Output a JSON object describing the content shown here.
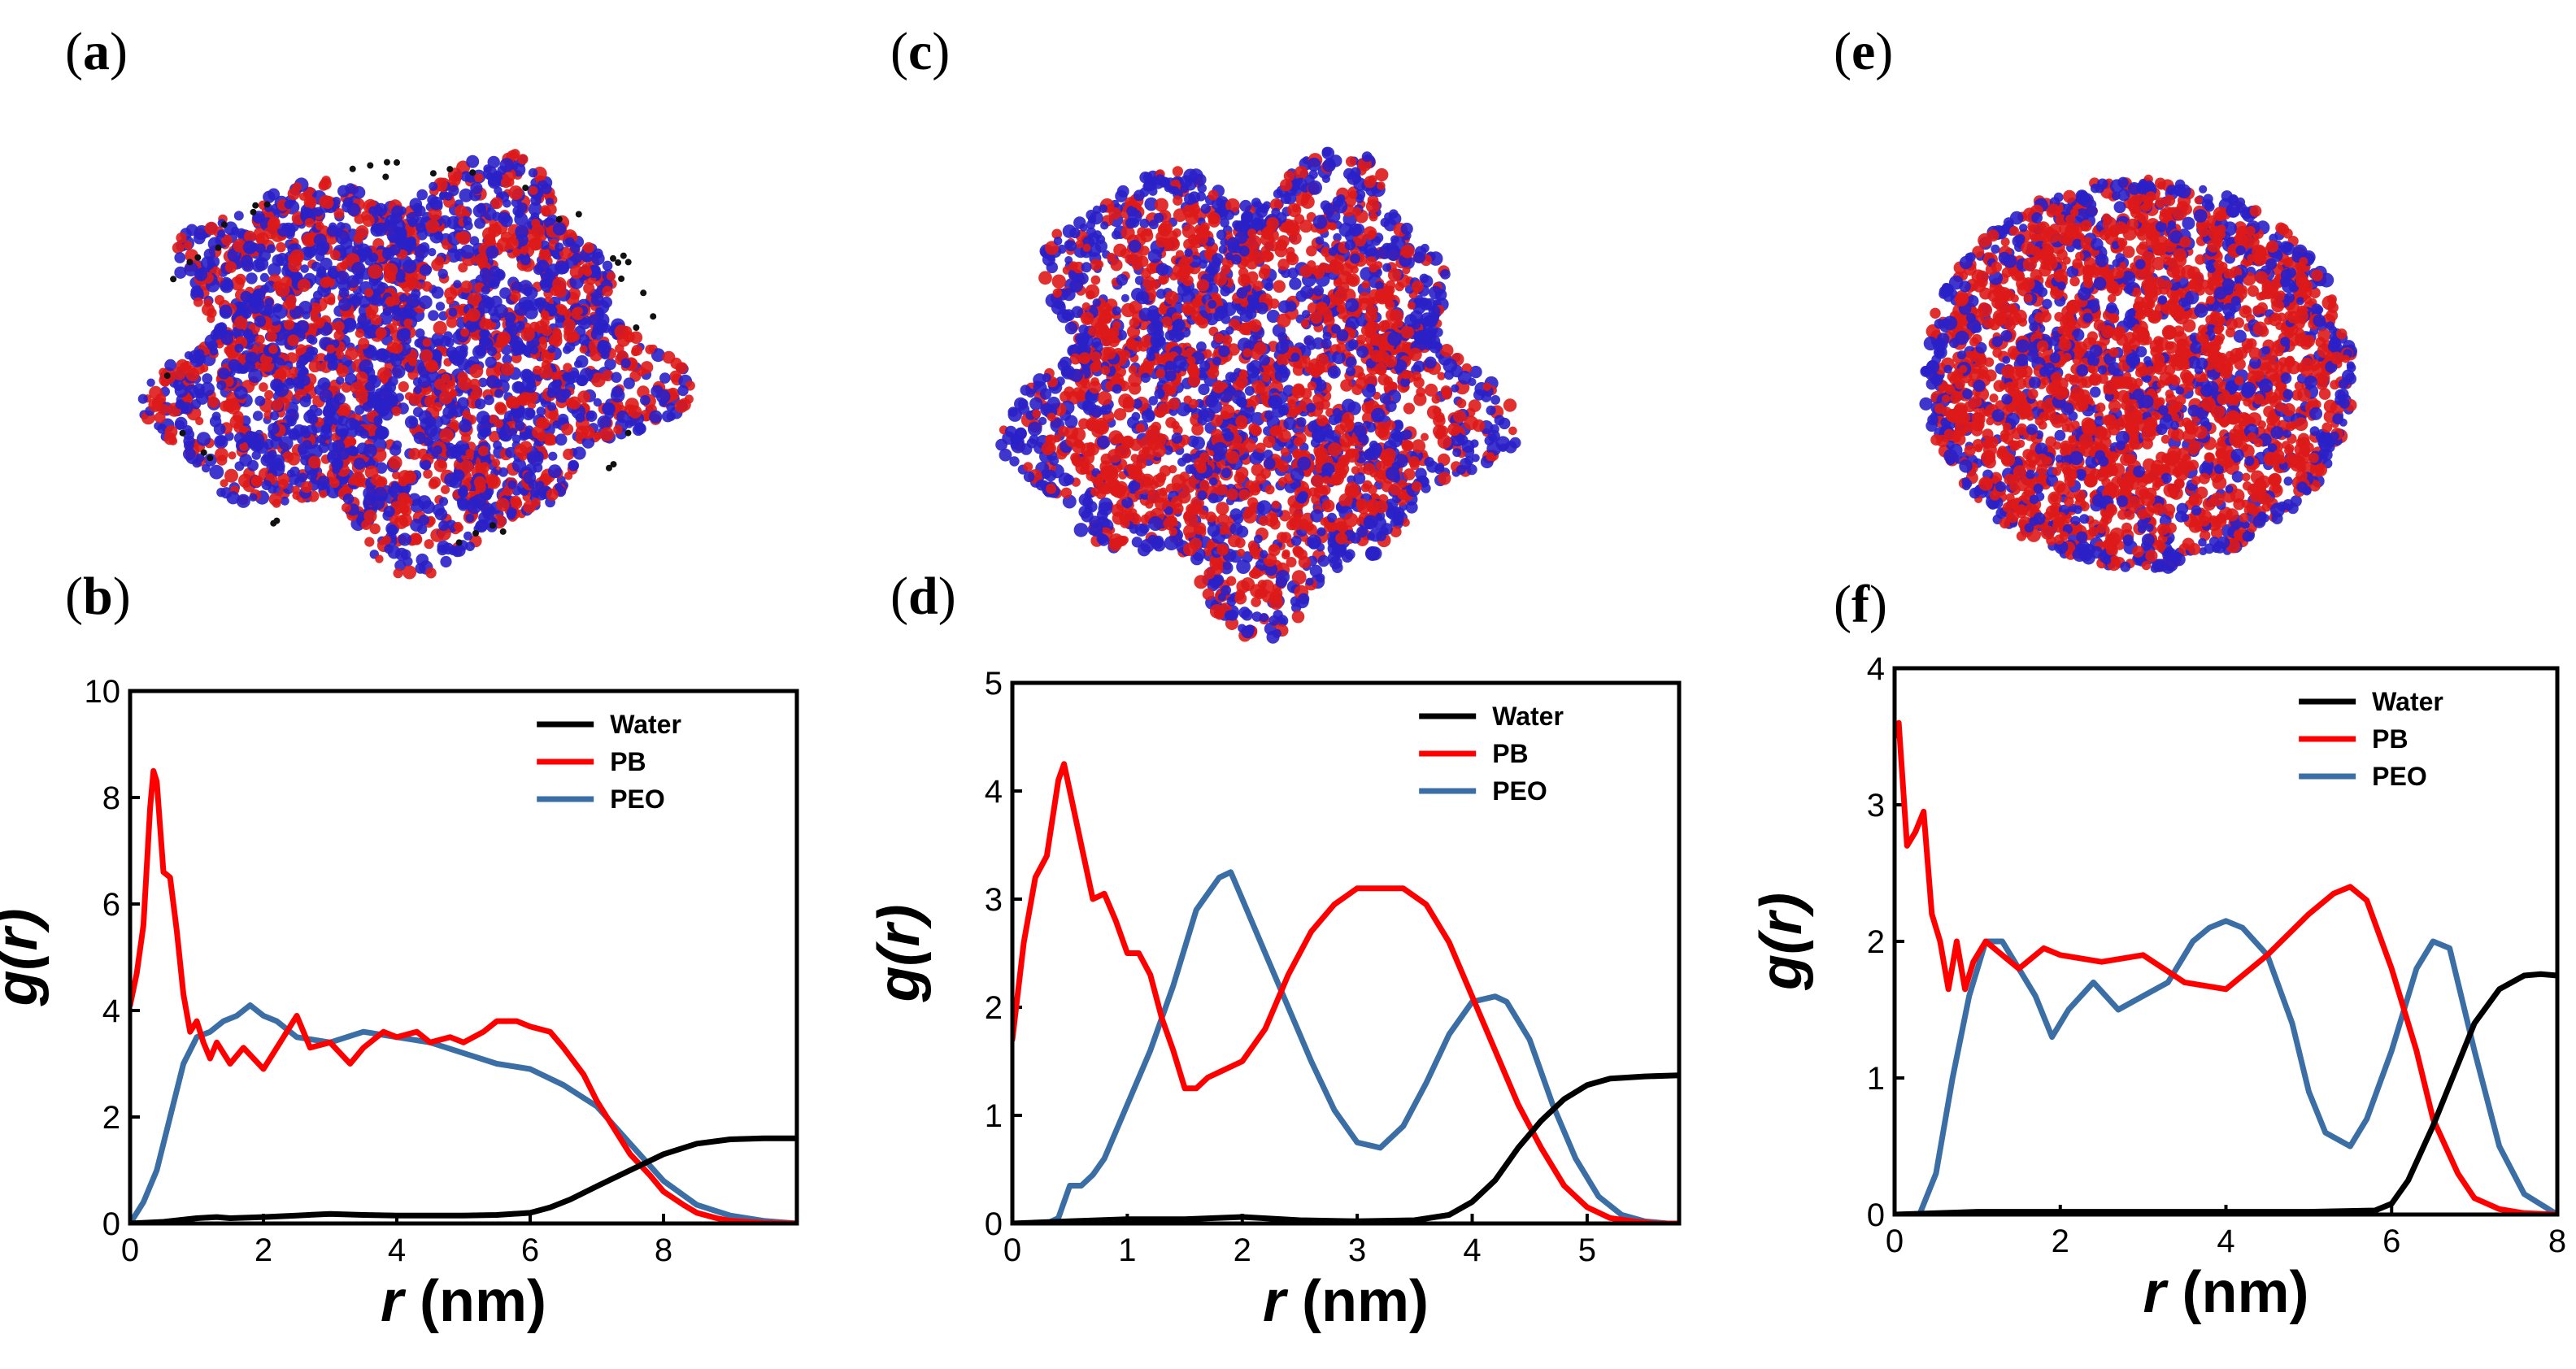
{
  "panels": [
    {
      "id": "a",
      "label_open": "(",
      "label_letter": "a",
      "label_close": ")",
      "kind": "simulation-snapshot",
      "shape": "irregular"
    },
    {
      "id": "c",
      "label_open": "(",
      "label_letter": "c",
      "label_close": ")",
      "kind": "simulation-snapshot",
      "shape": "rough"
    },
    {
      "id": "e",
      "label_open": "(",
      "label_letter": "e",
      "label_close": ")",
      "kind": "simulation-snapshot",
      "shape": "sphere"
    }
  ],
  "snapshot_colors": {
    "pb": "#dd1a1a",
    "peo": "#2a20c8",
    "water": "#111111"
  },
  "chart_data": [
    {
      "panel": "b",
      "label_open": "(",
      "label_letter": "b",
      "label_close": ")",
      "type": "line",
      "xlabel_var": "r",
      "xlabel_unit": " (nm)",
      "ylabel": "g(r)",
      "ylabel_fn": "g(",
      "ylabel_var": "r",
      "ylabel_close": ")",
      "xlim": [
        0,
        10
      ],
      "ylim": [
        0,
        10
      ],
      "xticks": [
        0,
        2,
        4,
        6,
        8
      ],
      "yticks": [
        0,
        2,
        4,
        6,
        8,
        10
      ],
      "legend": [
        "Water",
        "PB",
        "PEO"
      ],
      "series": [
        {
          "name": "Water",
          "color": "#000000",
          "x": [
            0,
            0.5,
            1.0,
            1.3,
            1.5,
            2.0,
            2.5,
            3.0,
            3.5,
            4.0,
            4.5,
            5.0,
            5.5,
            6.0,
            6.3,
            6.6,
            7.0,
            7.5,
            8.0,
            8.5,
            9.0,
            9.5,
            10.0
          ],
          "y": [
            0,
            0.03,
            0.1,
            0.12,
            0.1,
            0.12,
            0.15,
            0.18,
            0.16,
            0.15,
            0.15,
            0.15,
            0.16,
            0.2,
            0.3,
            0.45,
            0.7,
            1.0,
            1.3,
            1.5,
            1.58,
            1.6,
            1.6
          ]
        },
        {
          "name": "PB",
          "color": "#ff0000",
          "x": [
            0,
            0.1,
            0.2,
            0.3,
            0.35,
            0.4,
            0.5,
            0.6,
            0.7,
            0.8,
            0.9,
            1.0,
            1.1,
            1.2,
            1.3,
            1.5,
            1.7,
            2.0,
            2.3,
            2.5,
            2.7,
            3.0,
            3.3,
            3.5,
            3.8,
            4.0,
            4.3,
            4.5,
            4.8,
            5.0,
            5.3,
            5.5,
            5.8,
            6.0,
            6.3,
            6.5,
            6.8,
            7.0,
            7.3,
            7.5,
            7.8,
            8.0,
            8.3,
            8.5,
            8.8,
            9.0,
            9.5,
            10.0
          ],
          "y": [
            4.1,
            4.7,
            5.6,
            7.8,
            8.5,
            8.3,
            6.6,
            6.5,
            5.5,
            4.3,
            3.6,
            3.8,
            3.4,
            3.1,
            3.4,
            3.0,
            3.3,
            2.9,
            3.5,
            3.9,
            3.3,
            3.4,
            3.0,
            3.3,
            3.6,
            3.5,
            3.6,
            3.4,
            3.5,
            3.4,
            3.6,
            3.8,
            3.8,
            3.7,
            3.6,
            3.3,
            2.8,
            2.3,
            1.7,
            1.3,
            0.9,
            0.6,
            0.35,
            0.2,
            0.1,
            0.05,
            0.01,
            0
          ]
        },
        {
          "name": "PEO",
          "color": "#3a6ea5",
          "x": [
            0,
            0.2,
            0.4,
            0.6,
            0.8,
            1.0,
            1.2,
            1.4,
            1.6,
            1.8,
            2.0,
            2.2,
            2.5,
            3.0,
            3.5,
            4.0,
            4.5,
            5.0,
            5.5,
            6.0,
            6.5,
            7.0,
            7.5,
            8.0,
            8.5,
            9.0,
            9.5,
            10.0
          ],
          "y": [
            0,
            0.4,
            1.0,
            2.0,
            3.0,
            3.5,
            3.6,
            3.8,
            3.9,
            4.1,
            3.9,
            3.8,
            3.5,
            3.4,
            3.6,
            3.5,
            3.4,
            3.2,
            3.0,
            2.9,
            2.6,
            2.2,
            1.5,
            0.8,
            0.35,
            0.15,
            0.05,
            0
          ]
        }
      ]
    },
    {
      "panel": "d",
      "label_open": "(",
      "label_letter": "d",
      "label_close": ")",
      "type": "line",
      "xlabel_var": "r",
      "xlabel_unit": " (nm)",
      "ylabel": "g(r)",
      "ylabel_fn": "g(",
      "ylabel_var": "r",
      "ylabel_close": ")",
      "xlim": [
        0,
        5.8
      ],
      "ylim": [
        0,
        5
      ],
      "xticks": [
        0,
        1,
        2,
        3,
        4,
        5
      ],
      "yticks": [
        0,
        1,
        2,
        3,
        4,
        5
      ],
      "legend": [
        "Water",
        "PB",
        "PEO"
      ],
      "series": [
        {
          "name": "Water",
          "color": "#000000",
          "x": [
            0,
            0.5,
            1.0,
            1.5,
            2.0,
            2.5,
            3.0,
            3.5,
            3.8,
            4.0,
            4.2,
            4.4,
            4.6,
            4.8,
            5.0,
            5.2,
            5.5,
            5.8
          ],
          "y": [
            0,
            0.02,
            0.04,
            0.04,
            0.06,
            0.03,
            0.02,
            0.03,
            0.08,
            0.2,
            0.4,
            0.7,
            0.95,
            1.15,
            1.28,
            1.34,
            1.36,
            1.37
          ]
        },
        {
          "name": "PB",
          "color": "#ff0000",
          "x": [
            0,
            0.1,
            0.2,
            0.3,
            0.4,
            0.45,
            0.5,
            0.6,
            0.7,
            0.8,
            0.9,
            1.0,
            1.1,
            1.2,
            1.3,
            1.4,
            1.5,
            1.6,
            1.7,
            1.8,
            2.0,
            2.2,
            2.4,
            2.6,
            2.8,
            3.0,
            3.2,
            3.4,
            3.6,
            3.8,
            4.0,
            4.2,
            4.4,
            4.6,
            4.8,
            5.0,
            5.2,
            5.4,
            5.6,
            5.8
          ],
          "y": [
            1.7,
            2.6,
            3.2,
            3.4,
            4.1,
            4.25,
            4.0,
            3.5,
            3.0,
            3.05,
            2.8,
            2.5,
            2.5,
            2.3,
            1.9,
            1.6,
            1.25,
            1.25,
            1.35,
            1.4,
            1.5,
            1.8,
            2.3,
            2.7,
            2.95,
            3.1,
            3.1,
            3.1,
            2.95,
            2.6,
            2.1,
            1.6,
            1.1,
            0.7,
            0.35,
            0.15,
            0.05,
            0.02,
            0,
            0
          ]
        },
        {
          "name": "PEO",
          "color": "#3a6ea5",
          "x": [
            0,
            0.3,
            0.4,
            0.5,
            0.6,
            0.7,
            0.8,
            1.0,
            1.2,
            1.4,
            1.6,
            1.8,
            1.9,
            2.0,
            2.2,
            2.4,
            2.6,
            2.8,
            3.0,
            3.2,
            3.4,
            3.6,
            3.8,
            4.0,
            4.2,
            4.3,
            4.5,
            4.7,
            4.9,
            5.1,
            5.3,
            5.5,
            5.7,
            5.8
          ],
          "y": [
            0,
            0,
            0.05,
            0.35,
            0.35,
            0.45,
            0.6,
            1.1,
            1.6,
            2.2,
            2.9,
            3.2,
            3.25,
            3.0,
            2.5,
            2.0,
            1.5,
            1.05,
            0.75,
            0.7,
            0.9,
            1.3,
            1.75,
            2.05,
            2.1,
            2.05,
            1.7,
            1.1,
            0.6,
            0.25,
            0.08,
            0.02,
            0,
            0
          ]
        }
      ]
    },
    {
      "panel": "f",
      "label_open": "(",
      "label_letter": "f",
      "label_close": ")",
      "type": "line",
      "xlabel_var": "r",
      "xlabel_unit": " (nm)",
      "ylabel": "g(r)",
      "ylabel_fn": "g(",
      "ylabel_var": "r",
      "ylabel_close": ")",
      "xlim": [
        0,
        8
      ],
      "ylim": [
        0,
        4
      ],
      "xticks": [
        0,
        2,
        4,
        6,
        8
      ],
      "yticks": [
        0,
        1,
        2,
        3,
        4
      ],
      "legend": [
        "Water",
        "PB",
        "PEO"
      ],
      "series": [
        {
          "name": "Water",
          "color": "#000000",
          "x": [
            0,
            1.0,
            2.0,
            3.0,
            4.0,
            5.0,
            5.8,
            6.0,
            6.2,
            6.5,
            6.8,
            7.0,
            7.3,
            7.6,
            7.8,
            8.0
          ],
          "y": [
            0,
            0.02,
            0.02,
            0.02,
            0.02,
            0.02,
            0.03,
            0.08,
            0.25,
            0.65,
            1.1,
            1.4,
            1.65,
            1.75,
            1.76,
            1.75
          ]
        },
        {
          "name": "PB",
          "color": "#ff0000",
          "x": [
            0,
            0.05,
            0.15,
            0.25,
            0.35,
            0.45,
            0.55,
            0.65,
            0.75,
            0.85,
            0.95,
            1.1,
            1.3,
            1.5,
            1.8,
            2.0,
            2.5,
            3.0,
            3.5,
            4.0,
            4.5,
            5.0,
            5.3,
            5.5,
            5.7,
            6.0,
            6.3,
            6.5,
            6.8,
            7.0,
            7.3,
            7.6,
            8.0
          ],
          "y": [
            3.5,
            3.6,
            2.7,
            2.8,
            2.95,
            2.2,
            2.0,
            1.65,
            2.0,
            1.65,
            1.85,
            2.0,
            1.9,
            1.8,
            1.95,
            1.9,
            1.85,
            1.9,
            1.7,
            1.65,
            1.9,
            2.2,
            2.35,
            2.4,
            2.3,
            1.8,
            1.2,
            0.7,
            0.3,
            0.12,
            0.04,
            0.01,
            0
          ]
        },
        {
          "name": "PEO",
          "color": "#3a6ea5",
          "x": [
            0,
            0.3,
            0.5,
            0.7,
            0.9,
            1.1,
            1.3,
            1.5,
            1.7,
            1.9,
            2.1,
            2.4,
            2.7,
            3.0,
            3.3,
            3.6,
            3.8,
            4.0,
            4.2,
            4.5,
            4.8,
            5.0,
            5.2,
            5.5,
            5.7,
            6.0,
            6.3,
            6.5,
            6.7,
            7.0,
            7.3,
            7.6,
            8.0
          ],
          "y": [
            0,
            0,
            0.3,
            1.0,
            1.6,
            2.0,
            2.0,
            1.8,
            1.6,
            1.3,
            1.5,
            1.7,
            1.5,
            1.6,
            1.7,
            2.0,
            2.1,
            2.15,
            2.1,
            1.9,
            1.4,
            0.9,
            0.6,
            0.5,
            0.7,
            1.2,
            1.8,
            2.0,
            1.95,
            1.2,
            0.5,
            0.15,
            0
          ]
        }
      ]
    }
  ]
}
